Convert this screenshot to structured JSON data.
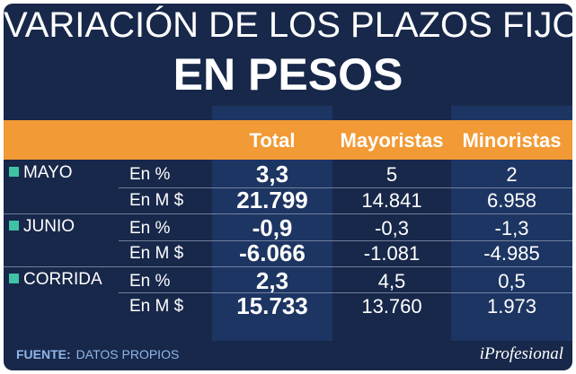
{
  "title": {
    "line1": "VARIACIÓN DE LOS PLAZOS FIJOS",
    "line2": "EN PESOS"
  },
  "colors": {
    "background": "#18284a",
    "header_bar": "#f29a36",
    "bullet": "#3fc2a6",
    "footer_text": "#8fb6e8"
  },
  "chart_data": {
    "type": "table",
    "columns": [
      "Total",
      "Mayoristas",
      "Minoristas"
    ],
    "rows": [
      {
        "group": "MAYO",
        "unit": "En %",
        "values": [
          "3,3",
          "5",
          "2"
        ]
      },
      {
        "group": "",
        "unit": "En M $",
        "values": [
          "21.799",
          "14.841",
          "6.958"
        ]
      },
      {
        "group": "JUNIO",
        "unit": "En %",
        "values": [
          "-0,9",
          "-0,3",
          "-1,3"
        ]
      },
      {
        "group": "",
        "unit": "En M $",
        "values": [
          "-6.066",
          "-1.081",
          "-4.985"
        ]
      },
      {
        "group": "CORRIDA",
        "unit": "En %",
        "values": [
          "2,3",
          "4,5",
          "0,5"
        ]
      },
      {
        "group": "",
        "unit": "En M $",
        "values": [
          "15.733",
          "13.760",
          "1.973"
        ]
      }
    ]
  },
  "footer": {
    "label": "FUENTE:",
    "source": "DATOS PROPIOS"
  },
  "logo": "iProfesional"
}
